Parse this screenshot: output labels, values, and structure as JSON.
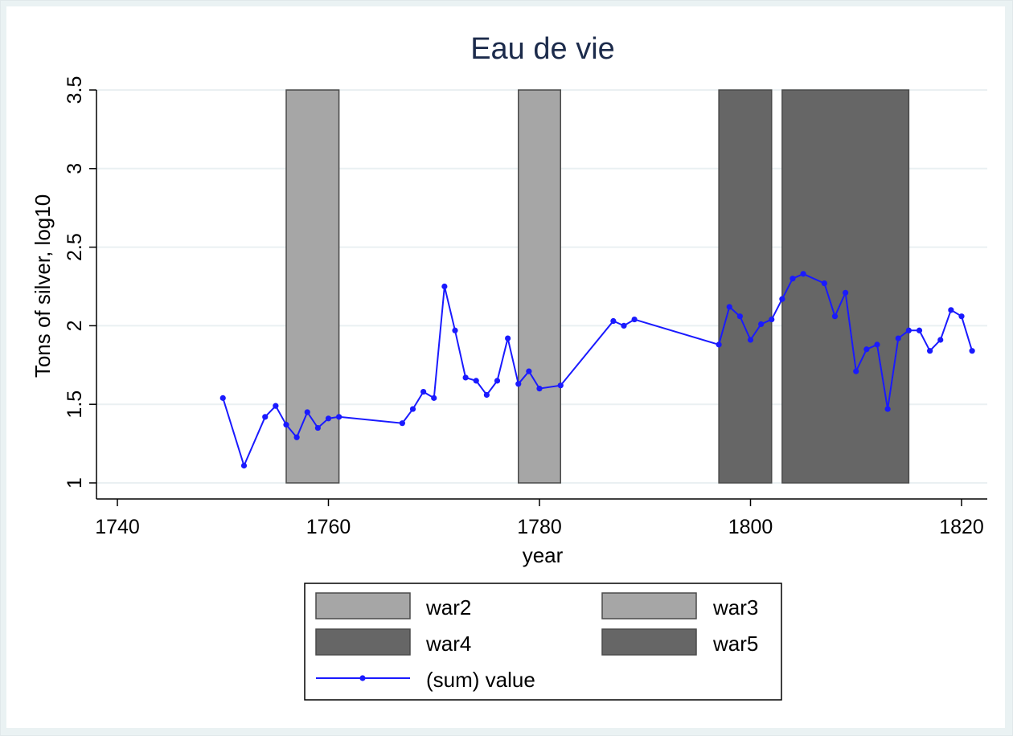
{
  "chart_data": {
    "type": "line",
    "title": "Eau de vie",
    "xlabel": "year",
    "ylabel": "Tons of silver, log10",
    "xlim": [
      1740,
      1821
    ],
    "ylim": [
      1,
      3.5
    ],
    "xticks": [
      "1740",
      "1760",
      "1780",
      "1800",
      "1820"
    ],
    "yticks": [
      "1",
      "1.5",
      "2",
      "2.5",
      "3",
      "3.5"
    ],
    "grid": true,
    "legend_position": "bottom",
    "shaded_ranges": [
      {
        "name": "war2",
        "x_start": 1756,
        "x_end": 1761,
        "color": "#a6a6a6"
      },
      {
        "name": "war3",
        "x_start": 1778,
        "x_end": 1782,
        "color": "#a6a6a6"
      },
      {
        "name": "war4",
        "x_start": 1797,
        "x_end": 1802,
        "color": "#666666"
      },
      {
        "name": "war5",
        "x_start": 1803,
        "x_end": 1815,
        "color": "#666666"
      }
    ],
    "series": [
      {
        "name": "(sum) value",
        "color": "#1a1aff",
        "points": [
          [
            1750,
            1.54
          ],
          [
            1752,
            1.11
          ],
          [
            1754,
            1.42
          ],
          [
            1755,
            1.49
          ],
          [
            1756,
            1.37
          ],
          [
            1757,
            1.29
          ],
          [
            1758,
            1.45
          ],
          [
            1759,
            1.35
          ],
          [
            1760,
            1.41
          ],
          [
            1761,
            1.42
          ],
          [
            1767,
            1.38
          ],
          [
            1768,
            1.47
          ],
          [
            1769,
            1.58
          ],
          [
            1770,
            1.54
          ],
          [
            1771,
            2.25
          ],
          [
            1772,
            1.97
          ],
          [
            1773,
            1.67
          ],
          [
            1774,
            1.65
          ],
          [
            1775,
            1.56
          ],
          [
            1776,
            1.65
          ],
          [
            1777,
            1.92
          ],
          [
            1778,
            1.63
          ],
          [
            1779,
            1.71
          ],
          [
            1780,
            1.6
          ],
          [
            1782,
            1.62
          ],
          [
            1787,
            2.03
          ],
          [
            1788,
            2.0
          ],
          [
            1789,
            2.04
          ],
          [
            1797,
            1.88
          ],
          [
            1798,
            2.12
          ],
          [
            1799,
            2.06
          ],
          [
            1800,
            1.91
          ],
          [
            1801,
            2.01
          ],
          [
            1802,
            2.04
          ],
          [
            1803,
            2.17
          ],
          [
            1804,
            2.3
          ],
          [
            1805,
            2.33
          ],
          [
            1807,
            2.27
          ],
          [
            1808,
            2.06
          ],
          [
            1809,
            2.21
          ],
          [
            1810,
            1.71
          ],
          [
            1811,
            1.85
          ],
          [
            1812,
            1.88
          ],
          [
            1813,
            1.47
          ],
          [
            1814,
            1.92
          ],
          [
            1815,
            1.97
          ],
          [
            1816,
            1.97
          ],
          [
            1817,
            1.84
          ],
          [
            1818,
            1.91
          ],
          [
            1819,
            2.1
          ],
          [
            1820,
            2.06
          ],
          [
            1821,
            1.84
          ]
        ]
      }
    ]
  },
  "legend": {
    "items": [
      {
        "label": "war2",
        "kind": "box",
        "color": "#a6a6a6"
      },
      {
        "label": "war3",
        "kind": "box",
        "color": "#a6a6a6"
      },
      {
        "label": "war4",
        "kind": "box",
        "color": "#666666"
      },
      {
        "label": "war5",
        "kind": "box",
        "color": "#666666"
      },
      {
        "label": "(sum) value",
        "kind": "line",
        "color": "#1a1aff"
      }
    ]
  }
}
